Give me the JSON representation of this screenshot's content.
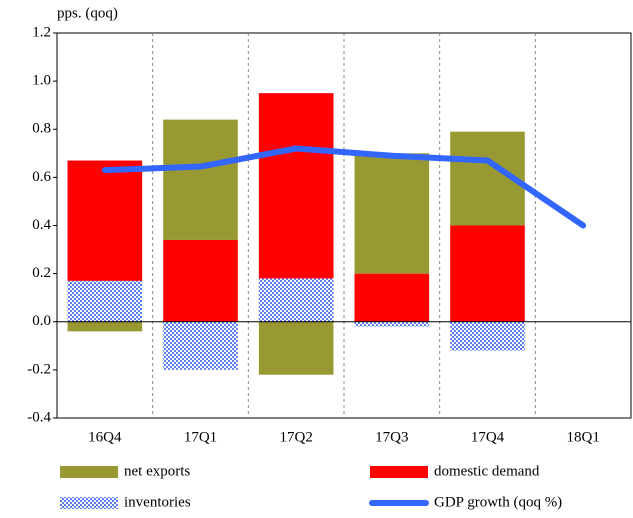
{
  "chart_data": {
    "type": "bar",
    "y_label": "pps. (qoq)",
    "categories": [
      "16Q4",
      "17Q1",
      "17Q2",
      "17Q3",
      "17Q4",
      "18Q1"
    ],
    "series": [
      {
        "name": "inventories",
        "color": "#7f9bf0",
        "pattern": "checkered",
        "values": [
          0.17,
          -0.2,
          0.18,
          -0.02,
          -0.12,
          null
        ]
      },
      {
        "name": "domestic demand",
        "color": "#ff0000",
        "values": [
          0.5,
          0.34,
          0.77,
          0.2,
          0.4,
          null
        ]
      },
      {
        "name": "net exports",
        "color": "#999933",
        "values": [
          -0.04,
          0.5,
          -0.22,
          0.5,
          0.39,
          null
        ]
      },
      {
        "name": "GDP growth (qoq %)",
        "color": "#3366ff",
        "type": "line",
        "values": [
          0.63,
          0.645,
          0.72,
          0.69,
          0.67,
          0.4
        ]
      }
    ],
    "legend_order": [
      2,
      1,
      0,
      3
    ],
    "ylim": [
      -0.4,
      1.2
    ],
    "yticks": [
      -0.4,
      -0.2,
      {
        "value": 0,
        "label": "0.0"
      },
      0.2,
      0.4,
      0.6,
      0.8,
      {
        "value": 1,
        "label": "1.0"
      },
      1.2
    ]
  }
}
